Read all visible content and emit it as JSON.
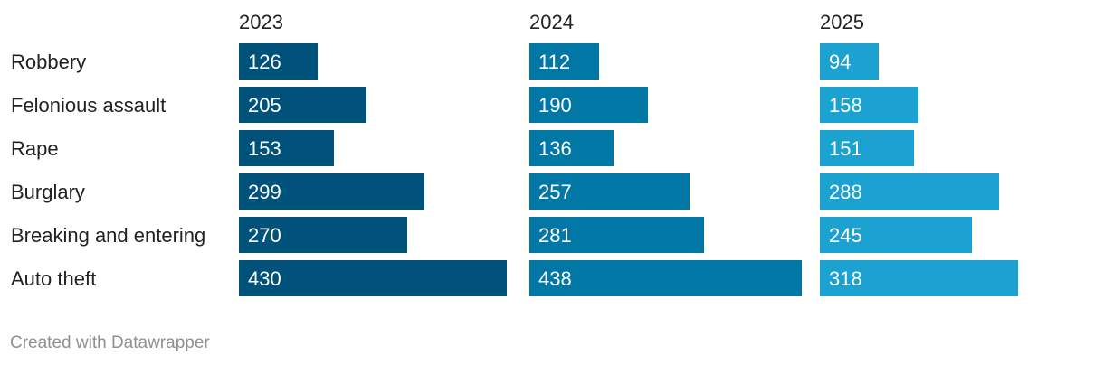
{
  "chart_data": {
    "type": "bar",
    "orientation": "horizontal",
    "layout": "small-multiples",
    "categories": [
      "Robbery",
      "Felonious assault",
      "Rape",
      "Burglary",
      "Breaking and entering",
      "Auto theft"
    ],
    "series": [
      {
        "name": "2023",
        "values": [
          126,
          205,
          153,
          299,
          270,
          430
        ],
        "color": "#00527b"
      },
      {
        "name": "2024",
        "values": [
          112,
          190,
          136,
          257,
          281,
          438
        ],
        "color": "#0077a5"
      },
      {
        "name": "2025",
        "values": [
          94,
          158,
          151,
          288,
          245,
          318
        ],
        "color": "#1ba2d0"
      }
    ],
    "xlim": [
      0,
      438
    ],
    "grid": false,
    "legend": "none"
  },
  "footer": {
    "credit": "Created with Datawrapper"
  }
}
